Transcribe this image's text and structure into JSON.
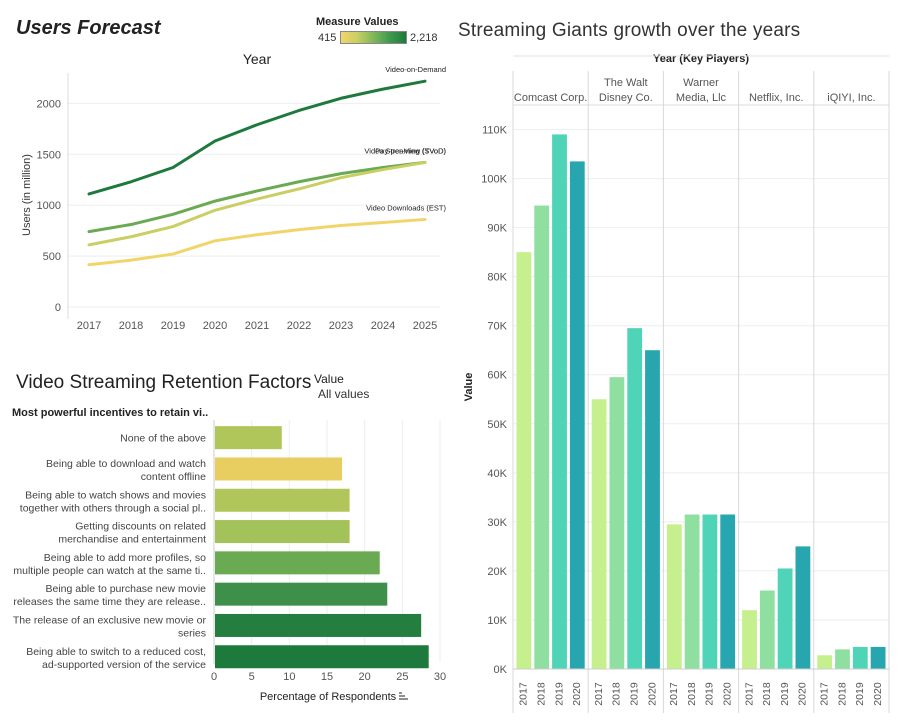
{
  "forecast": {
    "title": "Users Forecast",
    "legend": {
      "title": "Measure Values",
      "min_label": "415",
      "max_label": "2,218",
      "color_low": "#f1d56b",
      "color_high": "#1e7a3c"
    }
  },
  "retention": {
    "title": "Video Streaming Retention Factors",
    "legend_title": "Value",
    "legend_value": "All values"
  },
  "giants": {
    "title": "Streaming Giants growth over the years"
  },
  "chart_data": [
    {
      "type": "line",
      "title": "Year",
      "ylabel": "Users (in million)",
      "xlabel": "",
      "x": [
        "2017",
        "2018",
        "2019",
        "2020",
        "2021",
        "2022",
        "2023",
        "2024",
        "2025"
      ],
      "ylim": [
        0,
        2200
      ],
      "yticks": [
        0,
        500,
        1000,
        1500,
        2000
      ],
      "series": [
        {
          "name": "Video-on-Demand",
          "color": "#1e7a3c",
          "values": [
            1110,
            1230,
            1370,
            1630,
            1790,
            1930,
            2050,
            2140,
            2218
          ]
        },
        {
          "name": "Video Streaming (SVoD)",
          "color": "#6aaa52",
          "values": [
            740,
            810,
            910,
            1040,
            1140,
            1230,
            1310,
            1370,
            1420
          ]
        },
        {
          "name": "Pay-per-View (TVoD)",
          "color": "#c9cf63",
          "values": [
            610,
            690,
            790,
            950,
            1060,
            1160,
            1270,
            1350,
            1420
          ]
        },
        {
          "name": "Video Downloads (EST)",
          "color": "#f1d56b",
          "values": [
            415,
            460,
            520,
            650,
            710,
            760,
            800,
            830,
            860
          ]
        }
      ]
    },
    {
      "type": "bar",
      "orientation": "horizontal",
      "title": "",
      "column_header": "Most powerful incentives to retain vi..",
      "xlabel": "Percentage of Respondents",
      "xlim": [
        0,
        30
      ],
      "xticks": [
        0,
        5,
        10,
        15,
        20,
        25,
        30
      ],
      "categories": [
        [
          "None of the above"
        ],
        [
          "Being able to download and watch",
          "content offline"
        ],
        [
          "Being able to watch shows and movies",
          "together with others through a social pl.."
        ],
        [
          "Getting discounts on related",
          "merchandise and entertainment"
        ],
        [
          "Being able to add more profiles, so",
          "multiple people can watch at the same ti.."
        ],
        [
          "Being able to purchase new movie",
          "releases the same time they are release.."
        ],
        [
          "The release of an exclusive new movie or",
          "series"
        ],
        [
          "Being able to switch to a reduced cost,",
          "ad-supported version of the service"
        ]
      ],
      "values": [
        9,
        17,
        18,
        18,
        22,
        23,
        27.5,
        28.5
      ],
      "colors": [
        "#b0c65a",
        "#e8ce60",
        "#b0c65a",
        "#a3c25a",
        "#6aaa52",
        "#3e8f4a",
        "#237e40",
        "#1e7a3c"
      ]
    },
    {
      "type": "bar",
      "title": "Year (Key Players)",
      "ylabel": "Value",
      "ylim": [
        0,
        115000
      ],
      "yticks": [
        "0K",
        "10K",
        "20K",
        "30K",
        "40K",
        "50K",
        "60K",
        "70K",
        "80K",
        "90K",
        "100K",
        "110K"
      ],
      "groups": [
        "Comcast Corp.",
        "The Walt\nDisney Co.",
        "Warner\nMedia, Llc",
        "Netflix, Inc.",
        "iQIYI, Inc."
      ],
      "categories": [
        "2017",
        "2018",
        "2019",
        "2020"
      ],
      "colors": [
        "#c5f08d",
        "#8fe0a0",
        "#4fd4b8",
        "#27a6b0"
      ],
      "values": [
        [
          85000,
          94500,
          109000,
          103500
        ],
        [
          55000,
          59500,
          69500,
          65000
        ],
        [
          29500,
          31500,
          31500,
          31500
        ],
        [
          12000,
          16000,
          20500,
          25000
        ],
        [
          2800,
          4000,
          4500,
          4500
        ]
      ]
    }
  ]
}
